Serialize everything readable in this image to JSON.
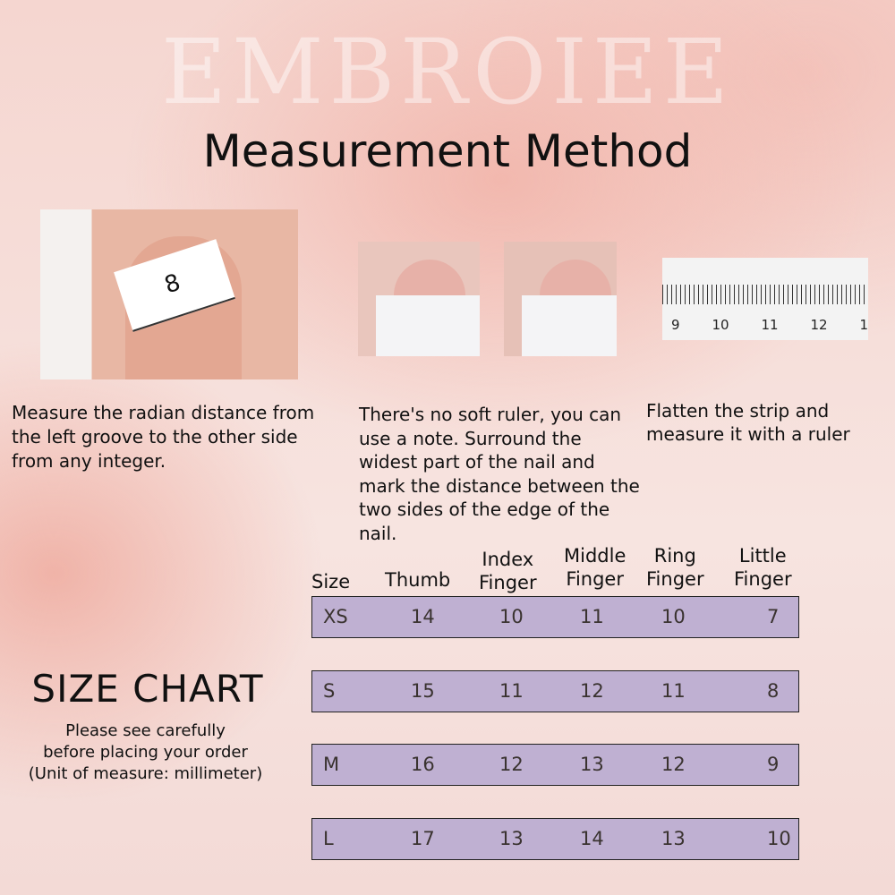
{
  "brand_watermark": "EMBROIEE",
  "title": "Measurement Method",
  "photos": {
    "tape_number": "8",
    "ruler_labels": [
      "9",
      "10",
      "11",
      "12",
      "1"
    ]
  },
  "steps": [
    {
      "text": "Measure the radian distance from the left groove to the other side from any integer."
    },
    {
      "text": "There's no soft ruler, you can use a note. Surround the widest part of the nail and mark the distance between the two sides of the edge of the nail."
    },
    {
      "text": "Flatten the strip and measure it with a ruler"
    }
  ],
  "size_chart": {
    "title": "SIZE CHART",
    "subtitle": [
      "Please see carefully",
      "before placing your order",
      "(Unit of measure: millimeter)"
    ],
    "row_color": "#bfb0d2",
    "headers": [
      [
        "Size"
      ],
      [
        "Thumb"
      ],
      [
        "Index",
        "Finger"
      ],
      [
        "Middle",
        "Finger"
      ],
      [
        "Ring",
        "Finger"
      ],
      [
        "Little",
        "Finger"
      ]
    ],
    "rows": [
      [
        "XS",
        "14",
        "10",
        "11",
        "10",
        "7"
      ],
      [
        "S",
        "15",
        "11",
        "12",
        "11",
        "8"
      ],
      [
        "M",
        "16",
        "12",
        "13",
        "12",
        "9"
      ],
      [
        "L",
        "17",
        "13",
        "14",
        "13",
        "10"
      ]
    ]
  }
}
